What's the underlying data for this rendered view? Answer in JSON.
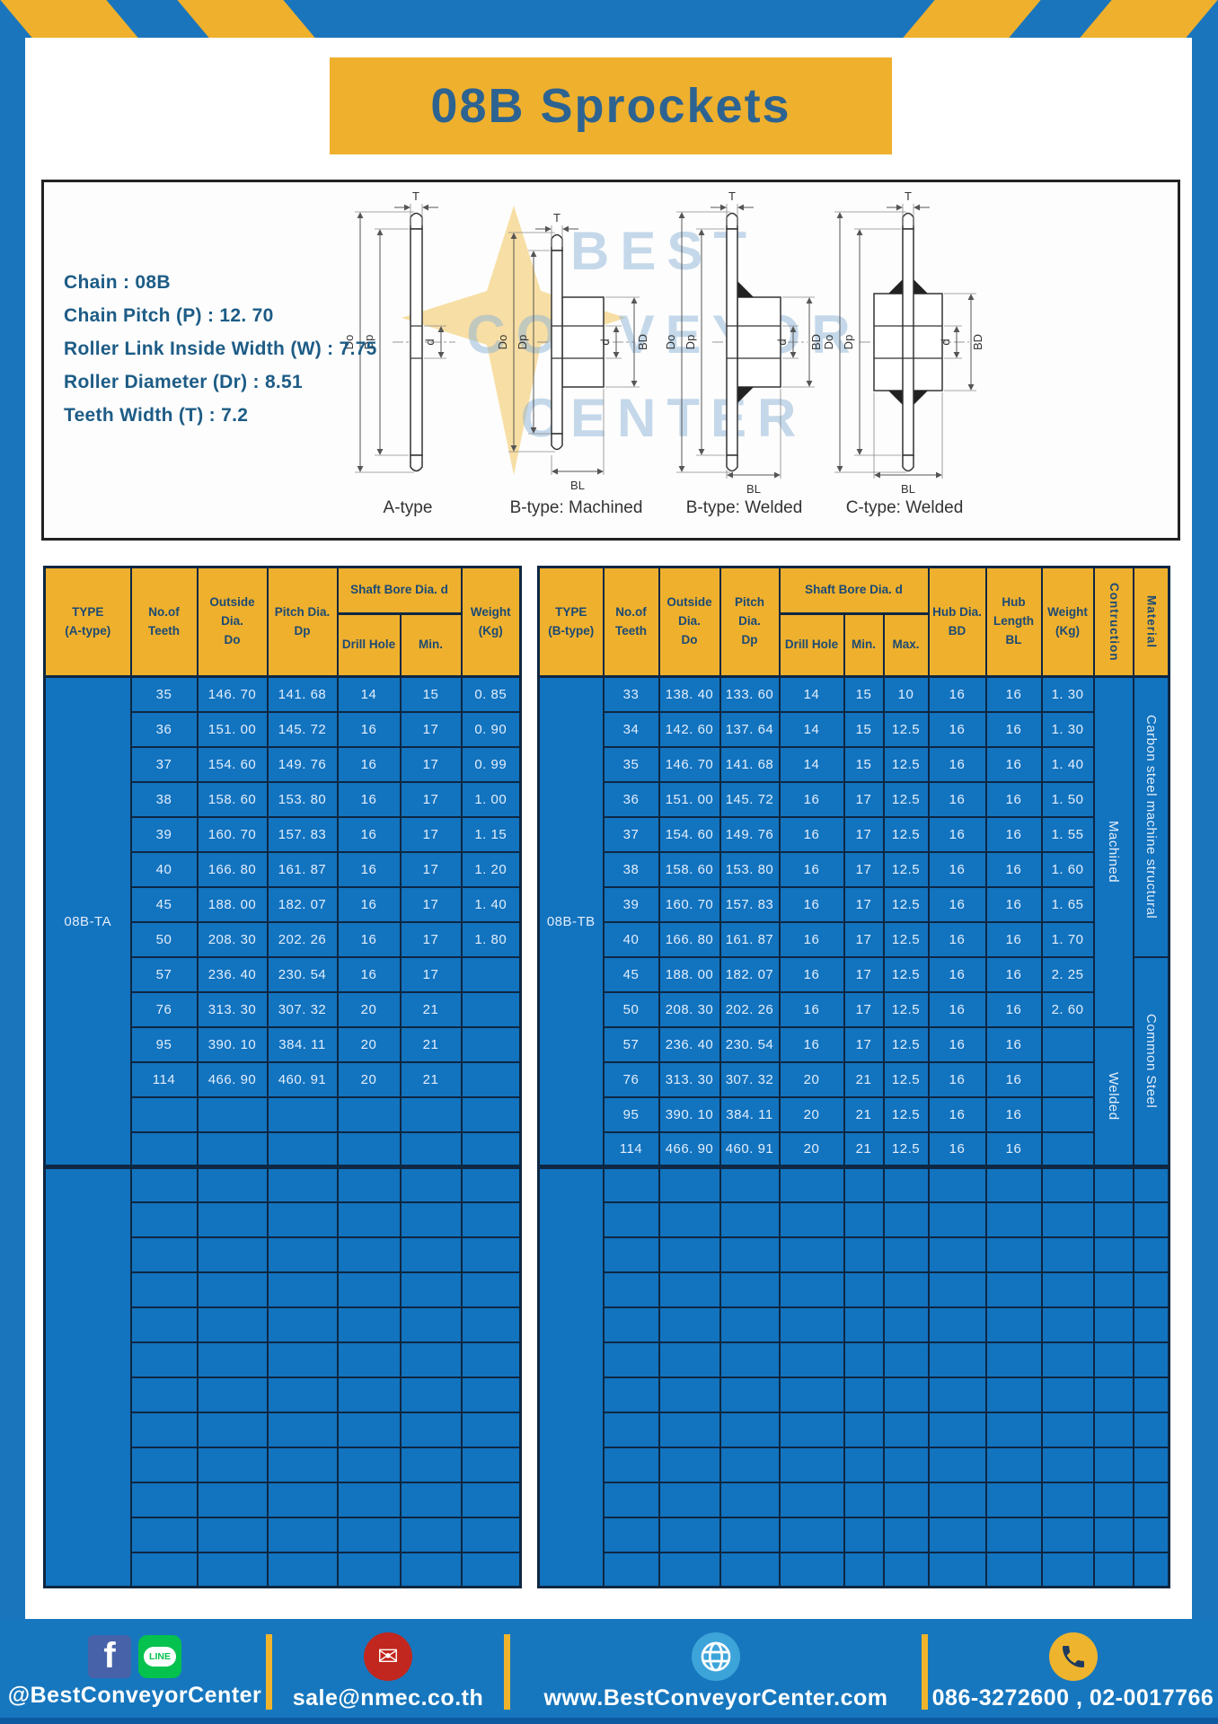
{
  "title": "08B Sprockets",
  "specs": [
    "Chain : 08B",
    "Chain Pitch (P) : 12. 70",
    "Roller Link Inside Width (W) : 7.75",
    "Roller Diameter (Dr) : 8.51",
    "Teeth Width (T) : 7.2"
  ],
  "diagram": {
    "watermark": [
      "BEST",
      "CONVEYOR",
      "CENTER"
    ],
    "dims": {
      "t": "T",
      "do": "Do",
      "dp": "Dp",
      "d": "d",
      "bd": "BD",
      "bl": "BL"
    },
    "captions": [
      "A-type",
      "B-type: Machined",
      "B-type: Welded",
      "C-type: Welded"
    ]
  },
  "table_a": {
    "type_label": "08B-TA",
    "headers": {
      "type": "TYPE\n(A-type)",
      "teeth": "No.of\nTeeth",
      "outside": "Outside\nDia.\nDo",
      "pitch": "Pitch Dia.\nDp",
      "shaft_bore": "Shaft Bore Dia. d",
      "drill": "Drill Hole",
      "min": "Min.",
      "weight": "Weight\n(Kg)"
    },
    "rows": [
      [
        "35",
        "146. 70",
        "141. 68",
        "14",
        "15",
        "0. 85"
      ],
      [
        "36",
        "151. 00",
        "145. 72",
        "16",
        "17",
        "0. 90"
      ],
      [
        "37",
        "154. 60",
        "149. 76",
        "16",
        "17",
        "0. 99"
      ],
      [
        "38",
        "158. 60",
        "153. 80",
        "16",
        "17",
        "1. 00"
      ],
      [
        "39",
        "160. 70",
        "157. 83",
        "16",
        "17",
        "1. 15"
      ],
      [
        "40",
        "166. 80",
        "161. 87",
        "16",
        "17",
        "1. 20"
      ],
      [
        "45",
        "188. 00",
        "182. 07",
        "16",
        "17",
        "1. 40"
      ],
      [
        "50",
        "208. 30",
        "202. 26",
        "16",
        "17",
        "1. 80"
      ],
      [
        "57",
        "236. 40",
        "230. 54",
        "16",
        "17",
        ""
      ],
      [
        "76",
        "313. 30",
        "307. 32",
        "20",
        "21",
        ""
      ],
      [
        "95",
        "390. 10",
        "384. 11",
        "20",
        "21",
        ""
      ],
      [
        "114",
        "466. 90",
        "460. 91",
        "20",
        "21",
        ""
      ],
      [
        "",
        "",
        "",
        "",
        "",
        ""
      ],
      [
        "",
        "",
        "",
        "",
        "",
        ""
      ]
    ],
    "bottom_rows": 12
  },
  "table_b": {
    "type_label": "08B-TB",
    "headers": {
      "type": "TYPE\n(B-type)",
      "teeth": "No.of\nTeeth",
      "outside": "Outside\nDia.\nDo",
      "pitch": "Pitch Dia.\nDp",
      "shaft_bore": "Shaft Bore Dia. d",
      "drill": "Drill Hole",
      "min": "Min.",
      "max": "Max.",
      "hub_dia": "Hub Dia.\nBD",
      "hub_len": "Hub\nLength\nBL",
      "weight": "Weight\n(Kg)",
      "construction": "Contruction",
      "material": "Material"
    },
    "rows": [
      [
        "33",
        "138. 40",
        "133. 60",
        "14",
        "15",
        "10",
        "16",
        "16",
        "1. 30"
      ],
      [
        "34",
        "142. 60",
        "137. 64",
        "14",
        "15",
        "12.5",
        "16",
        "16",
        "1. 30"
      ],
      [
        "35",
        "146. 70",
        "141. 68",
        "14",
        "15",
        "12.5",
        "16",
        "16",
        "1. 40"
      ],
      [
        "36",
        "151. 00",
        "145. 72",
        "16",
        "17",
        "12.5",
        "16",
        "16",
        "1. 50"
      ],
      [
        "37",
        "154. 60",
        "149. 76",
        "16",
        "17",
        "12.5",
        "16",
        "16",
        "1. 55"
      ],
      [
        "38",
        "158. 60",
        "153. 80",
        "16",
        "17",
        "12.5",
        "16",
        "16",
        "1. 60"
      ],
      [
        "39",
        "160. 70",
        "157. 83",
        "16",
        "17",
        "12.5",
        "16",
        "16",
        "1. 65"
      ],
      [
        "40",
        "166. 80",
        "161. 87",
        "16",
        "17",
        "12.5",
        "16",
        "16",
        "1. 70"
      ],
      [
        "45",
        "188. 00",
        "182. 07",
        "16",
        "17",
        "12.5",
        "16",
        "16",
        "2. 25"
      ],
      [
        "50",
        "208. 30",
        "202. 26",
        "16",
        "17",
        "12.5",
        "16",
        "16",
        "2. 60"
      ],
      [
        "57",
        "236. 40",
        "230. 54",
        "16",
        "17",
        "12.5",
        "16",
        "16",
        ""
      ],
      [
        "76",
        "313. 30",
        "307. 32",
        "20",
        "21",
        "12.5",
        "16",
        "16",
        ""
      ],
      [
        "95",
        "390. 10",
        "384. 11",
        "20",
        "21",
        "12.5",
        "16",
        "16",
        ""
      ],
      [
        "114",
        "466. 90",
        "460. 91",
        "20",
        "21",
        "12.5",
        "16",
        "16",
        ""
      ]
    ],
    "construction_spans": [
      {
        "label": "Machined",
        "count": 10
      },
      {
        "label": "Welded",
        "count": 4
      }
    ],
    "material_spans": [
      {
        "label": "Carbon steel machine structural",
        "count": 8
      },
      {
        "label": "Common Steel",
        "count": 6
      }
    ],
    "bottom_rows": 12
  },
  "footer": {
    "social": "@BestConveyorCenter",
    "line_badge": "LINE",
    "email": "sale@nmec.co.th",
    "website": "www.BestConveyorCenter.com",
    "phone": "086-3272600 , 02-0017766"
  },
  "colors": {
    "blue": "#1b75bc",
    "yellow": "#efb02d",
    "cell_blue": "#1273bf",
    "border_navy": "#0e2742",
    "header_text": "#1c4a74",
    "title_text": "#2d6391"
  }
}
